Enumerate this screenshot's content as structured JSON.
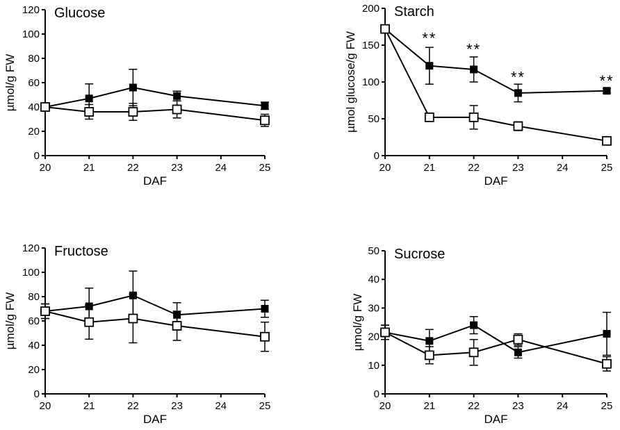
{
  "chart_data": [
    {
      "type": "line",
      "title": "Glucose",
      "xlabel": "DAF",
      "ylabel": "µmol/g FW",
      "xlim": [
        20,
        25
      ],
      "ylim": [
        0,
        120
      ],
      "xticks": [
        20,
        21,
        22,
        23,
        24,
        25
      ],
      "yticks": [
        0,
        20,
        40,
        60,
        80,
        100,
        120
      ],
      "x": [
        20,
        21,
        22,
        23,
        25
      ],
      "series": [
        {
          "name": "filled squares",
          "marker": "filled-square",
          "values": [
            40,
            47,
            56,
            49,
            41
          ],
          "errors": [
            3,
            12,
            15,
            4,
            3
          ]
        },
        {
          "name": "open squares",
          "marker": "open-square",
          "values": [
            40,
            36,
            36,
            38,
            29
          ],
          "errors": [
            3,
            6,
            7,
            7,
            5
          ]
        }
      ],
      "annotations": []
    },
    {
      "type": "line",
      "title": "Starch",
      "xlabel": "DAF",
      "ylabel": "µmol glucose/g FW",
      "xlim": [
        20,
        25
      ],
      "ylim": [
        0,
        200
      ],
      "xticks": [
        20,
        21,
        22,
        23,
        24,
        25
      ],
      "yticks": [
        0,
        50,
        100,
        150,
        200
      ],
      "x": [
        20,
        21,
        22,
        23,
        25
      ],
      "series": [
        {
          "name": "filled squares",
          "marker": "filled-square",
          "values": [
            172,
            122,
            117,
            85,
            88
          ],
          "errors": [
            3,
            25,
            17,
            12,
            3
          ]
        },
        {
          "name": "open squares",
          "marker": "open-square",
          "values": [
            172,
            52,
            52,
            40,
            20
          ],
          "errors": [
            3,
            3,
            16,
            6,
            2
          ]
        }
      ],
      "annotations": [
        {
          "x": 21,
          "y": 160,
          "text": "**"
        },
        {
          "x": 22,
          "y": 145,
          "text": "**"
        },
        {
          "x": 23,
          "y": 107,
          "text": "**"
        },
        {
          "x": 25,
          "y": 102,
          "text": "**"
        }
      ]
    },
    {
      "type": "line",
      "title": "Fructose",
      "xlabel": "DAF",
      "ylabel": "µmol/g FW",
      "xlim": [
        20,
        25
      ],
      "ylim": [
        0,
        120
      ],
      "xticks": [
        20,
        21,
        22,
        23,
        24,
        25
      ],
      "yticks": [
        0,
        20,
        40,
        60,
        80,
        100,
        120
      ],
      "x": [
        20,
        21,
        22,
        23,
        25
      ],
      "series": [
        {
          "name": "filled squares",
          "marker": "filled-square",
          "values": [
            68,
            72,
            81,
            65,
            70
          ],
          "errors": [
            6,
            15,
            20,
            10,
            7
          ]
        },
        {
          "name": "open squares",
          "marker": "open-square",
          "values": [
            68,
            59,
            62,
            56,
            47
          ],
          "errors": [
            6,
            14,
            20,
            12,
            12
          ]
        }
      ],
      "annotations": []
    },
    {
      "type": "line",
      "title": "Sucrose",
      "xlabel": "DAF",
      "ylabel": "µmol/g FW",
      "xlim": [
        20,
        25
      ],
      "ylim": [
        0,
        50
      ],
      "xticks": [
        20,
        21,
        22,
        23,
        24,
        25
      ],
      "yticks": [
        0,
        10,
        20,
        30,
        40,
        50
      ],
      "x": [
        20,
        21,
        22,
        23,
        25
      ],
      "series": [
        {
          "name": "filled squares",
          "marker": "filled-square",
          "values": [
            21.5,
            18.5,
            24,
            14.5,
            21
          ],
          "errors": [
            2.5,
            4,
            3,
            2,
            7.5
          ]
        },
        {
          "name": "open squares",
          "marker": "open-square",
          "values": [
            21.5,
            13.5,
            14.5,
            19,
            10.5
          ],
          "errors": [
            2.5,
            3,
            4.5,
            2,
            2.5
          ]
        }
      ],
      "annotations": []
    }
  ]
}
